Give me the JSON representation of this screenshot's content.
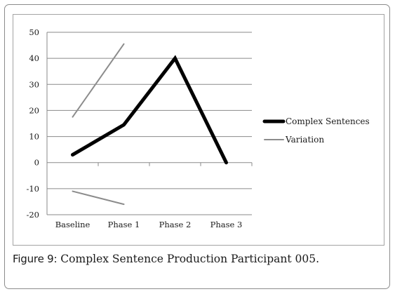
{
  "chart_data": {
    "type": "line",
    "categories": [
      "Baseline",
      "Phase 1",
      "Phase 2",
      "Phase 3"
    ],
    "ylim": [
      -20,
      50
    ],
    "yticks": [
      50,
      40,
      30,
      20,
      10,
      0,
      -10,
      -20
    ],
    "grid": true,
    "legend_position": "right",
    "series": [
      {
        "name": "Complex Sentences",
        "color": "#000000",
        "values": [
          3,
          14.5,
          40,
          0
        ]
      },
      {
        "name": "Variation",
        "color": "#8c8c8c",
        "segments": [
          {
            "values": [
              17.5,
              45.5,
              null,
              null
            ]
          },
          {
            "values": [
              -11,
              -16,
              null,
              null
            ]
          }
        ]
      }
    ]
  },
  "caption": {
    "label": "Figure 9:",
    "text": " Complex Sentence Production Participant 005."
  }
}
